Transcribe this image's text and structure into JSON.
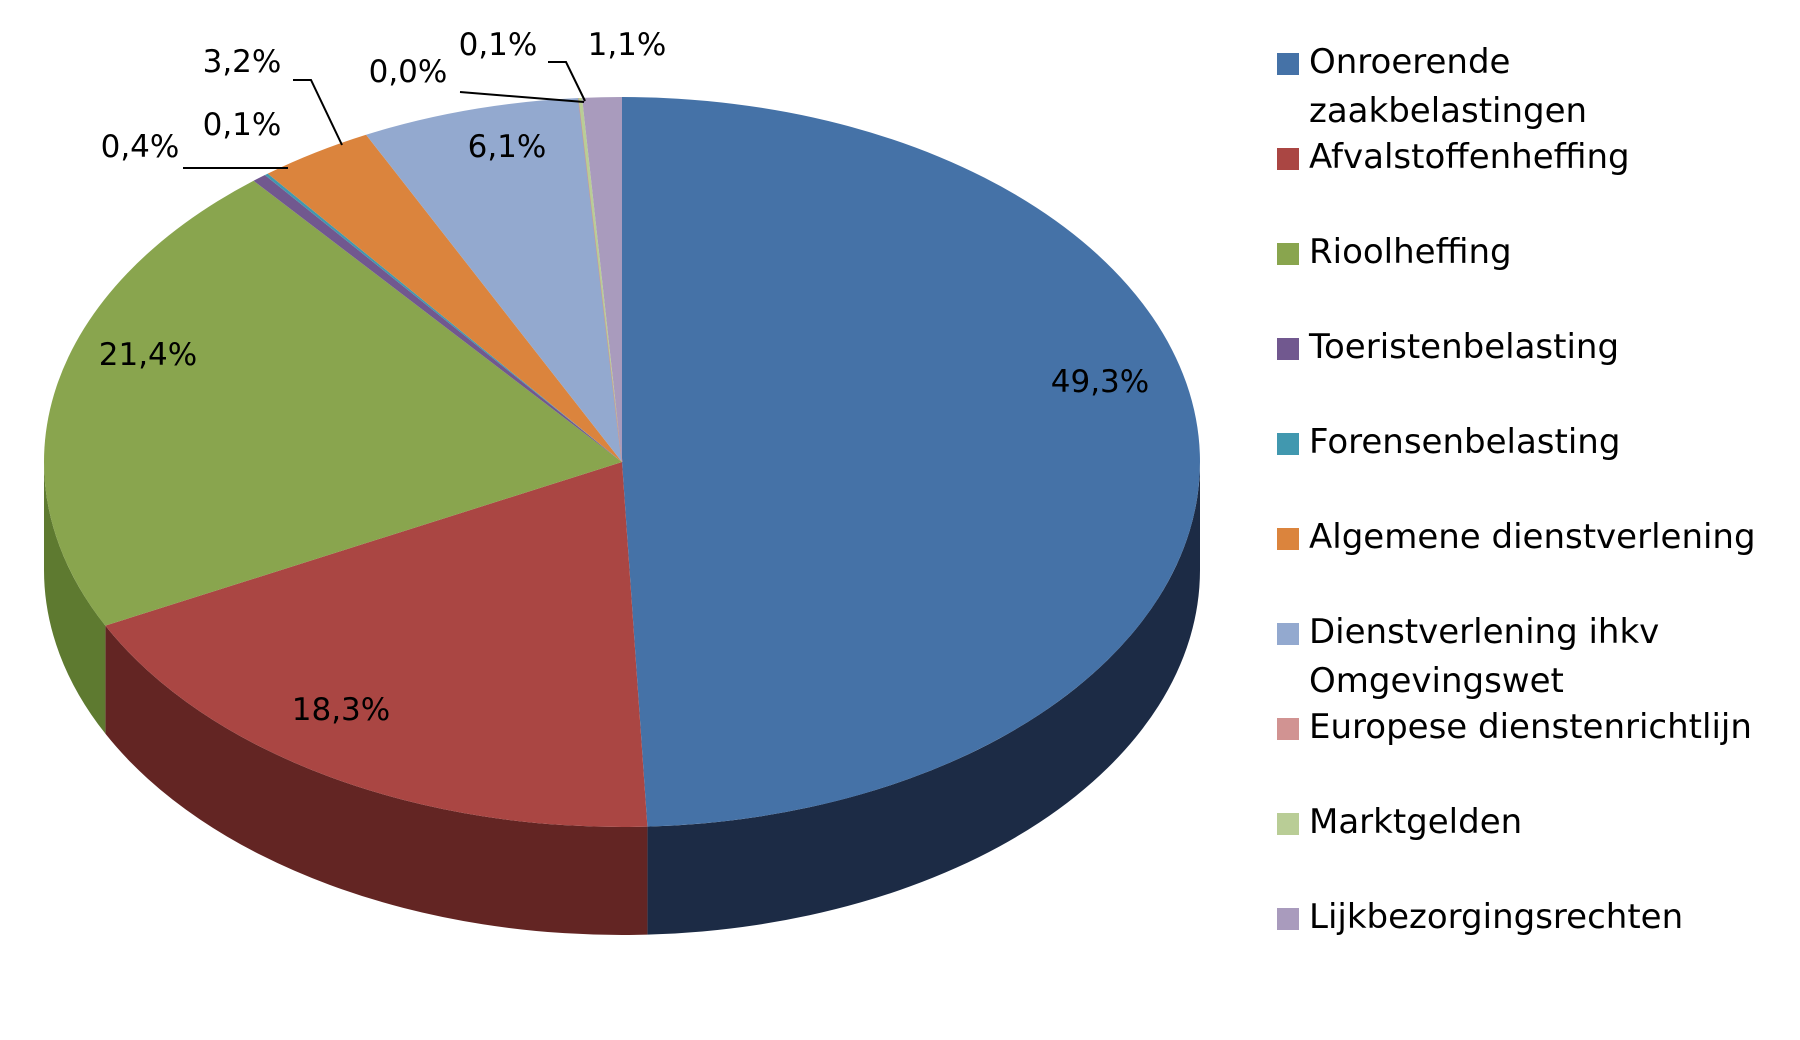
{
  "chart_data": {
    "type": "pie",
    "title": "",
    "legend_position": "right",
    "series": [
      {
        "name": "Onroerende zaakbelastingen",
        "value": 49.3,
        "label": "49,3%",
        "color": "#4572A7",
        "side": "#1C2B45"
      },
      {
        "name": "Afvalstoffenheffing",
        "value": 18.3,
        "label": "18,3%",
        "color": "#AA4643",
        "side": "#632523"
      },
      {
        "name": "Rioolheffing",
        "value": 21.4,
        "label": "21,4%",
        "color": "#89A54E",
        "side": "#5E7A30"
      },
      {
        "name": "Toeristenbelasting",
        "value": 0.4,
        "label": "0,4%",
        "color": "#71588F",
        "side": "#43355A"
      },
      {
        "name": "Forensenbelasting",
        "value": 0.1,
        "label": "0,1%",
        "color": "#4198AF",
        "side": "#25606F"
      },
      {
        "name": "Algemene dienstverlening",
        "value": 3.2,
        "label": "3,2%",
        "color": "#DB843D",
        "side": "#8B5326"
      },
      {
        "name": "Dienstverlening ihkv Omgevingswet",
        "value": 6.1,
        "label": "6,1%",
        "color": "#93A9CF",
        "side": "#5C6E8E"
      },
      {
        "name": "Europese dienstenrichtlijn",
        "value": 0.0,
        "label": "0,0%",
        "color": "#D19392",
        "side": "#8A5D5C"
      },
      {
        "name": "Marktgelden",
        "value": 0.1,
        "label": "0,1%",
        "color": "#B9CD96",
        "side": "#7C8C60"
      },
      {
        "name": "Lijkbezorgingsrechten",
        "value": 1.1,
        "label": "1,1%",
        "color": "#A99BBD",
        "side": "#6E6380"
      }
    ]
  }
}
